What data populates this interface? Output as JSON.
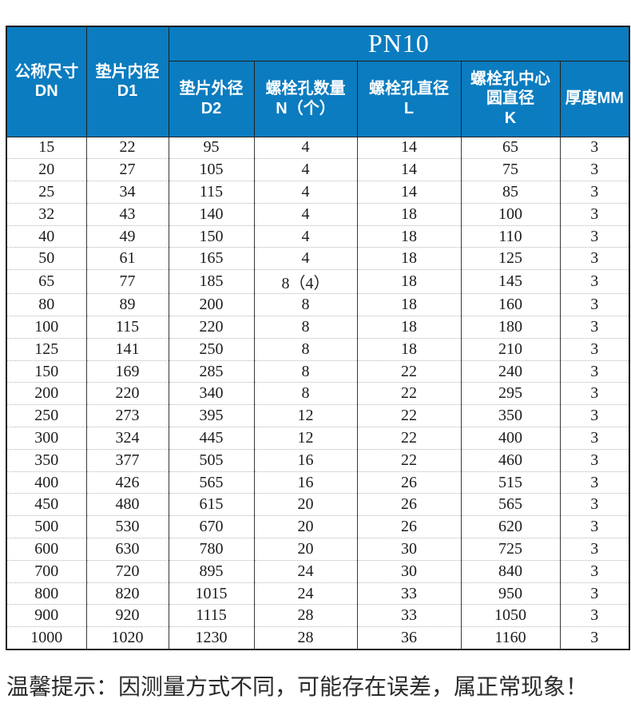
{
  "colors": {
    "header_blue": "#0b7cc0",
    "border_dark": "#1f1f1f",
    "row_divider": "#b5b5b5",
    "text_dark": "#1c1c1c"
  },
  "table": {
    "pn_label": "PN10",
    "col_dn": {
      "line1": "公称尺寸",
      "line2": "DN"
    },
    "col_d1": {
      "line1": "垫片内径",
      "line2": "D1"
    },
    "sub_columns": [
      {
        "line1": "垫片外径",
        "line2": "D2"
      },
      {
        "line1": "螺栓孔数量",
        "line2": "N（个）"
      },
      {
        "line1": "螺栓孔直径",
        "line2": "L"
      },
      {
        "line1": "螺栓孔中心",
        "line2": "圆直径",
        "line3": "K"
      },
      {
        "line1": "厚度MM"
      }
    ],
    "rows": [
      [
        "15",
        "22",
        "95",
        "4",
        "14",
        "65",
        "3"
      ],
      [
        "20",
        "27",
        "105",
        "4",
        "14",
        "75",
        "3"
      ],
      [
        "25",
        "34",
        "115",
        "4",
        "14",
        "85",
        "3"
      ],
      [
        "32",
        "43",
        "140",
        "4",
        "18",
        "100",
        "3"
      ],
      [
        "40",
        "49",
        "150",
        "4",
        "18",
        "110",
        "3"
      ],
      [
        "50",
        "61",
        "165",
        "4",
        "18",
        "125",
        "3"
      ],
      [
        "65",
        "77",
        "185",
        "8（4）",
        "18",
        "145",
        "3"
      ],
      [
        "80",
        "89",
        "200",
        "8",
        "18",
        "160",
        "3"
      ],
      [
        "100",
        "115",
        "220",
        "8",
        "18",
        "180",
        "3"
      ],
      [
        "125",
        "141",
        "250",
        "8",
        "18",
        "210",
        "3"
      ],
      [
        "150",
        "169",
        "285",
        "8",
        "22",
        "240",
        "3"
      ],
      [
        "200",
        "220",
        "340",
        "8",
        "22",
        "295",
        "3"
      ],
      [
        "250",
        "273",
        "395",
        "12",
        "22",
        "350",
        "3"
      ],
      [
        "300",
        "324",
        "445",
        "12",
        "22",
        "400",
        "3"
      ],
      [
        "350",
        "377",
        "505",
        "16",
        "22",
        "460",
        "3"
      ],
      [
        "400",
        "426",
        "565",
        "16",
        "26",
        "515",
        "3"
      ],
      [
        "450",
        "480",
        "615",
        "20",
        "26",
        "565",
        "3"
      ],
      [
        "500",
        "530",
        "670",
        "20",
        "26",
        "620",
        "3"
      ],
      [
        "600",
        "630",
        "780",
        "20",
        "30",
        "725",
        "3"
      ],
      [
        "700",
        "720",
        "895",
        "24",
        "30",
        "840",
        "3"
      ],
      [
        "800",
        "820",
        "1015",
        "24",
        "33",
        "950",
        "3"
      ],
      [
        "900",
        "920",
        "1115",
        "28",
        "33",
        "1050",
        "3"
      ],
      [
        "1000",
        "1020",
        "1230",
        "28",
        "36",
        "1160",
        "3"
      ]
    ]
  },
  "footer": {
    "tip": "温馨提示：因测量方式不同，可能存在误差，属正常现象！"
  }
}
